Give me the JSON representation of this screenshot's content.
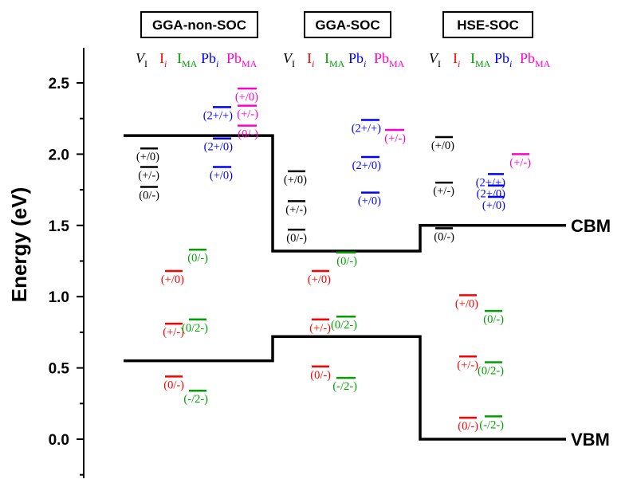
{
  "chart_data": {
    "type": "line",
    "ylabel": "Energy (eV)",
    "ylim": [
      -0.2,
      2.75
    ],
    "yticks": [
      "0.0",
      "0.5",
      "1.0",
      "1.5",
      "2.0",
      "2.5"
    ],
    "ytick_values": [
      0.0,
      0.5,
      1.0,
      1.5,
      2.0,
      2.5
    ],
    "panels": [
      "GGA-non-SOC",
      "GGA-SOC",
      "HSE-SOC"
    ],
    "legend_order": [
      "VI",
      "Ii",
      "IMA",
      "Pbi",
      "PbMA"
    ],
    "legend": {
      "VI": {
        "main": "V",
        "sub": "I",
        "italic_main": true,
        "italic_sub": false
      },
      "Ii": {
        "main": "I",
        "sub": "i",
        "italic_main": false,
        "italic_sub": true
      },
      "IMA": {
        "main": "I",
        "sub": "MA",
        "italic_main": false,
        "italic_sub": false
      },
      "Pbi": {
        "main": "Pb",
        "sub": "i",
        "italic_main": false,
        "italic_sub": true
      },
      "PbMA": {
        "main": "Pb",
        "sub": "MA",
        "italic_main": false,
        "italic_sub": false
      }
    },
    "colors": {
      "VI": "#000000",
      "Ii": "#ff0000",
      "IMA": "#00a000",
      "Pbi": "#0000ff",
      "PbMA": "#ff00cc"
    },
    "band_labels": {
      "cbm": "CBM",
      "vbm": "VBM"
    },
    "cbm": [
      2.13,
      1.32,
      1.5
    ],
    "vbm": [
      0.55,
      0.72,
      0.0
    ],
    "levels": [
      {
        "panel": 0,
        "defect": "VI",
        "label": "(+/0)",
        "e": 2.04
      },
      {
        "panel": 0,
        "defect": "VI",
        "label": "(+/-)",
        "e": 1.91
      },
      {
        "panel": 0,
        "defect": "VI",
        "label": "(0/-)",
        "e": 1.77
      },
      {
        "panel": 0,
        "defect": "Ii",
        "label": "(+/0)",
        "e": 1.18
      },
      {
        "panel": 0,
        "defect": "Ii",
        "label": "(+/-)",
        "e": 0.81
      },
      {
        "panel": 0,
        "defect": "Ii",
        "label": "(0/-)",
        "e": 0.44
      },
      {
        "panel": 0,
        "defect": "IMA",
        "label": "(0/-)",
        "e": 1.33
      },
      {
        "panel": 0,
        "defect": "IMA",
        "label": "(0/2-)",
        "e": 0.84
      },
      {
        "panel": 0,
        "defect": "IMA",
        "label": "(-/2-)",
        "e": 0.34
      },
      {
        "panel": 0,
        "defect": "Pbi",
        "label": "(2+/+)",
        "e": 2.33
      },
      {
        "panel": 0,
        "defect": "Pbi",
        "label": "(2+/0)",
        "e": 2.11
      },
      {
        "panel": 0,
        "defect": "Pbi",
        "label": "(+/0)",
        "e": 1.91
      },
      {
        "panel": 0,
        "defect": "PbMA",
        "label": "(+/0)",
        "e": 2.46
      },
      {
        "panel": 0,
        "defect": "PbMA",
        "label": "(+/-)",
        "e": 2.34
      },
      {
        "panel": 0,
        "defect": "PbMA",
        "label": "(0/-)",
        "e": 2.2
      },
      {
        "panel": 1,
        "defect": "VI",
        "label": "(+/0)",
        "e": 1.88
      },
      {
        "panel": 1,
        "defect": "VI",
        "label": "(+/-)",
        "e": 1.67
      },
      {
        "panel": 1,
        "defect": "VI",
        "label": "(0/-)",
        "e": 1.47
      },
      {
        "panel": 1,
        "defect": "Ii",
        "label": "(+/0)",
        "e": 1.18
      },
      {
        "panel": 1,
        "defect": "Ii",
        "label": "(+/-)",
        "e": 0.84
      },
      {
        "panel": 1,
        "defect": "Ii",
        "label": "(0/-)",
        "e": 0.51
      },
      {
        "panel": 1,
        "defect": "IMA",
        "label": "(0/-)",
        "e": 1.31
      },
      {
        "panel": 1,
        "defect": "IMA",
        "label": "(0/2-)",
        "e": 0.86
      },
      {
        "panel": 1,
        "defect": "IMA",
        "label": "(-/2-)",
        "e": 0.43
      },
      {
        "panel": 1,
        "defect": "Pbi",
        "label": "(2+/+)",
        "e": 2.24
      },
      {
        "panel": 1,
        "defect": "Pbi",
        "label": "(2+/0)",
        "e": 1.98
      },
      {
        "panel": 1,
        "defect": "Pbi",
        "label": "(+/0)",
        "e": 1.73
      },
      {
        "panel": 1,
        "defect": "PbMA",
        "label": "(+/-)",
        "e": 2.17
      },
      {
        "panel": 2,
        "defect": "VI",
        "label": "(+/0)",
        "e": 2.12
      },
      {
        "panel": 2,
        "defect": "VI",
        "label": "(+/-)",
        "e": 1.8
      },
      {
        "panel": 2,
        "defect": "VI",
        "label": "(0/-)",
        "e": 1.48
      },
      {
        "panel": 2,
        "defect": "Ii",
        "label": "(+/0)",
        "e": 1.01
      },
      {
        "panel": 2,
        "defect": "Ii",
        "label": "(+/-)",
        "e": 0.58
      },
      {
        "panel": 2,
        "defect": "Ii",
        "label": "(0/-)",
        "e": 0.15
      },
      {
        "panel": 2,
        "defect": "IMA",
        "label": "(0/-)",
        "e": 0.9
      },
      {
        "panel": 2,
        "defect": "IMA",
        "label": "(0/2-)",
        "e": 0.54
      },
      {
        "panel": 2,
        "defect": "IMA",
        "label": "(-/2-)",
        "e": 0.16
      },
      {
        "panel": 2,
        "defect": "Pbi",
        "label": "(2+/+)",
        "e": 1.86
      },
      {
        "panel": 2,
        "defect": "Pbi",
        "label": "(2+/0)",
        "e": 1.78
      },
      {
        "panel": 2,
        "defect": "Pbi",
        "label": "(+/0)",
        "e": 1.7
      },
      {
        "panel": 2,
        "defect": "PbMA",
        "label": "(+/-)",
        "e": 2.0
      }
    ]
  }
}
